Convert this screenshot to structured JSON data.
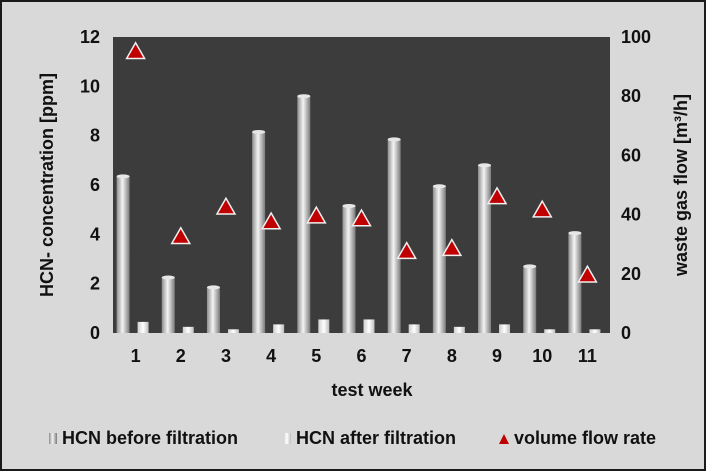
{
  "chart_data": {
    "type": "bar",
    "categories": [
      "1",
      "2",
      "3",
      "4",
      "5",
      "6",
      "7",
      "8",
      "9",
      "10",
      "11"
    ],
    "xlabel": "test week",
    "ylabel": "HCN- concentration [ppm]",
    "y2label": "waste gas flow [m³/h]",
    "ylim": [
      0,
      12
    ],
    "y2lim": [
      0,
      100
    ],
    "yticks": [
      "0",
      "2",
      "4",
      "6",
      "8",
      "10",
      "12"
    ],
    "y2ticks": [
      "0",
      "20",
      "40",
      "60",
      "80",
      "100"
    ],
    "grid": false,
    "legend_position": "bottom",
    "series": [
      {
        "name": "HCN before filtration",
        "type": "bar",
        "axis": "left",
        "color": "#bdbdbd",
        "values": [
          6.35,
          2.25,
          1.85,
          8.15,
          9.6,
          5.15,
          7.85,
          5.95,
          6.8,
          2.7,
          4.05
        ]
      },
      {
        "name": "HCN after filtration",
        "type": "bar",
        "axis": "left",
        "color": "#f2f2f2",
        "values": [
          0.45,
          0.25,
          0.15,
          0.35,
          0.55,
          0.55,
          0.35,
          0.25,
          0.35,
          0.15,
          0.15
        ]
      },
      {
        "name": "volume flow rate",
        "type": "scatter",
        "axis": "right",
        "marker": "triangle",
        "color": "#c00000",
        "values": [
          95,
          32.5,
          42.5,
          37.5,
          39.5,
          38.5,
          27.5,
          28.5,
          46,
          41.5,
          19.5
        ]
      }
    ]
  }
}
